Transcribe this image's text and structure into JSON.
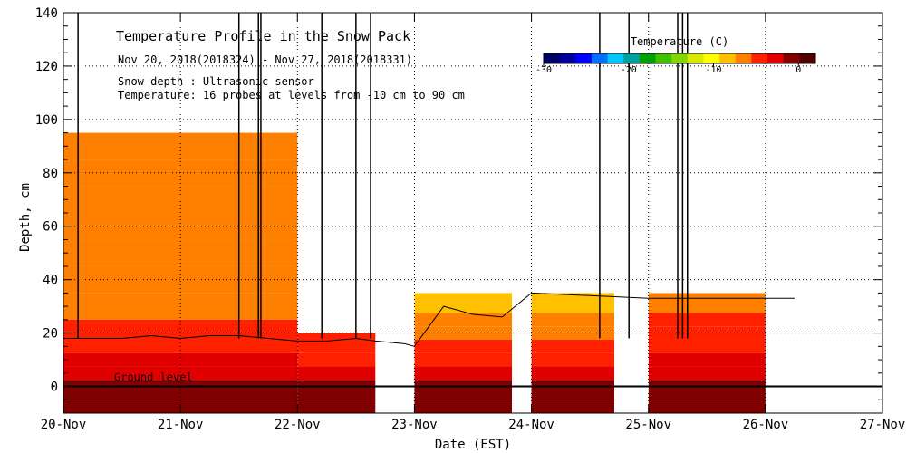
{
  "chart_data": {
    "type": "heatmap",
    "title": "Temperature Profile in the Snow Pack",
    "subtitle": "Nov 20, 2018(2018324) - Nov 27, 2018(2018331)",
    "notes": [
      "Snow depth : Ultrasonic sensor",
      "Temperature: 16 probes at levels from -10 cm to 90 cm"
    ],
    "xlabel": "Date (EST)",
    "ylabel": "Depth, cm",
    "x_ticks": [
      "20-Nov",
      "21-Nov",
      "22-Nov",
      "23-Nov",
      "24-Nov",
      "25-Nov",
      "26-Nov",
      "27-Nov"
    ],
    "x_range": [
      "2018-11-20",
      "2018-11-27"
    ],
    "ylim": [
      -10,
      140
    ],
    "y_ticks": [
      0,
      20,
      40,
      60,
      80,
      100,
      120,
      140
    ],
    "grid": true,
    "ground_label": "Ground level",
    "colorbar": {
      "title": "Temperature (C)",
      "range": [
        -30,
        2
      ],
      "ticks": [
        -30,
        -20,
        -10,
        0
      ],
      "colors": [
        "#000066",
        "#00009a",
        "#0000ff",
        "#0070ff",
        "#00c8ff",
        "#00a0a0",
        "#00a000",
        "#40c000",
        "#80d800",
        "#d8e800",
        "#ffff00",
        "#ffc000",
        "#ff8000",
        "#ff2000",
        "#e00000",
        "#800000",
        "#500000"
      ]
    },
    "gaps": [
      [
        "2018-11-22 16:00",
        "2018-11-22 23:59"
      ],
      [
        "2018-11-23 20:00",
        "2018-11-23 23:00"
      ],
      [
        "2018-11-24 17:00",
        "2018-11-25 00:00"
      ]
    ],
    "snow_depth": {
      "t": [
        "2018-11-20 00:00",
        "2018-11-20 06:00",
        "2018-11-20 12:00",
        "2018-11-20 18:00",
        "2018-11-21 00:00",
        "2018-11-21 06:00",
        "2018-11-21 12:00",
        "2018-11-21 18:00",
        "2018-11-22 00:00",
        "2018-11-22 06:00",
        "2018-11-22 12:00",
        "2018-11-22 16:00",
        "2018-11-22 22:00",
        "2018-11-23 00:00",
        "2018-11-23 06:00",
        "2018-11-23 12:00",
        "2018-11-23 18:00",
        "2018-11-24 00:00",
        "2018-11-24 12:00",
        "2018-11-25 00:00",
        "2018-11-25 12:00",
        "2018-11-26 00:00",
        "2018-11-26 06:00"
      ],
      "depth_cm": [
        18,
        18,
        18,
        19,
        18,
        19,
        19,
        18,
        17,
        17,
        18,
        17,
        16,
        15,
        30,
        27,
        26,
        35,
        34,
        33,
        33,
        33,
        33
      ]
    },
    "spikes_to_top": [
      "2018-11-20 03:00",
      "2018-11-21 12:00",
      "2018-11-21 16:00",
      "2018-11-21 16:30",
      "2018-11-22 05:00",
      "2018-11-22 12:00",
      "2018-11-22 15:00",
      "2018-11-24 14:00",
      "2018-11-24 20:00",
      "2018-11-25 06:00",
      "2018-11-25 07:00",
      "2018-11-25 08:00"
    ],
    "temperature_profile": [
      {
        "t_start": "2018-11-20 00:00",
        "t_end": "2018-11-22 00:00",
        "levels_cm": [
          -10,
          0,
          5,
          10,
          15,
          20,
          30,
          40,
          50,
          60,
          70,
          80,
          90
        ],
        "temp_c": [
          -1,
          -0.5,
          -2,
          -3,
          -4,
          -5,
          -6,
          -7,
          -7,
          -7,
          -7,
          -7,
          -7
        ]
      },
      {
        "t_start": "2018-11-22 00:00",
        "t_end": "2018-11-22 16:00",
        "levels_cm": [
          -10,
          0,
          5,
          10,
          15
        ],
        "temp_c": [
          -1,
          -1.5,
          -2,
          -4,
          -4
        ]
      },
      {
        "t_start": "2018-11-23 00:00",
        "t_end": "2018-11-23 20:00",
        "levels_cm": [
          -10,
          0,
          5,
          10,
          15,
          20,
          25,
          30
        ],
        "temp_c": [
          -1,
          -1.5,
          -3,
          -4,
          -5,
          -6,
          -7,
          -8
        ]
      },
      {
        "t_start": "2018-11-24 00:00",
        "t_end": "2018-11-24 17:00",
        "levels_cm": [
          -10,
          0,
          5,
          10,
          15,
          20,
          25,
          30
        ],
        "temp_c": [
          -1,
          -1.5,
          -3,
          -4,
          -5,
          -6,
          -7,
          -8
        ]
      },
      {
        "t_start": "2018-11-25 00:00",
        "t_end": "2018-11-26 00:00",
        "levels_cm": [
          -10,
          0,
          5,
          10,
          15,
          20,
          25,
          30
        ],
        "temp_c": [
          -1,
          -0.5,
          -2,
          -3,
          -4,
          -4,
          -5,
          -6
        ]
      }
    ]
  }
}
